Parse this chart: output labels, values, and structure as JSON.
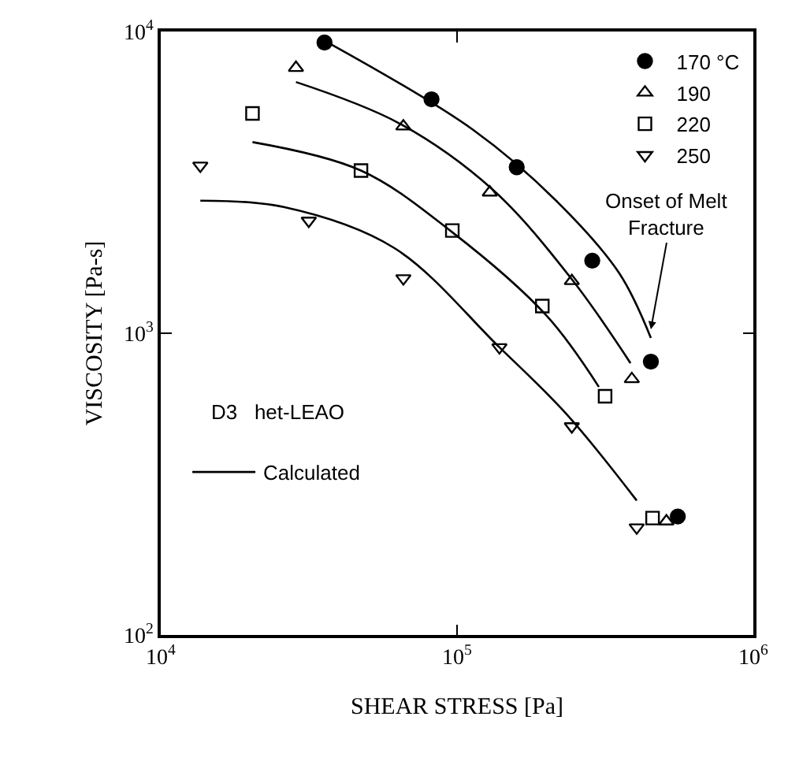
{
  "chart_data": {
    "type": "scatter",
    "xlabel": "SHEAR STRESS [Pa]",
    "ylabel": "VISCOSITY [Pa-s]",
    "log": "xy",
    "legend": "top right",
    "xlim": [
      10000,
      1000000
    ],
    "ylim": [
      100,
      10000
    ],
    "xticks": [
      {
        "value": 10000,
        "label": "10$^{4}$"
      },
      {
        "value": 100000,
        "label": "10$^{5}$"
      },
      {
        "value": 1000000,
        "label": "10$^{6}$"
      }
    ],
    "yticks": [
      {
        "value": 100,
        "label": "10$^{2}$"
      },
      {
        "value": 1000,
        "label": "10$^{3}$"
      },
      {
        "value": 10000,
        "label": "10$^{4}$"
      }
    ],
    "annotations": [
      {
        "text": "Onset of Melt Fracture",
        "x": 451000,
        "y": 1030
      },
      "D3   het-LEAO"
    ],
    "series": [
      {
        "name": "170 °C",
        "color": "#000000",
        "marker": "circle",
        "x": [
          35700,
          82000,
          159000,
          286000,
          451000,
          556000
        ],
        "values": [
          9190,
          5960,
          3550,
          1740,
          805,
          247
        ]
      },
      {
        "name": "190",
        "color": "#000000",
        "marker": "triangle",
        "x": [
          28600,
          65900,
          129000,
          244000,
          389000,
          509000
        ],
        "values": [
          7580,
          4850,
          2930,
          1490,
          705,
          238
        ]
      },
      {
        "name": "220",
        "color": "#000000",
        "marker": "square",
        "x": [
          20400,
          47400,
          96400,
          194000,
          316000,
          457000
        ],
        "values": [
          5350,
          3460,
          2190,
          1230,
          618,
          244
        ]
      },
      {
        "name": "250",
        "color": "#000000",
        "marker": "triangle-down",
        "x": [
          13600,
          31600,
          65900,
          139000,
          244000,
          404000
        ],
        "values": [
          3590,
          2360,
          1520,
          898,
          491,
          227
        ]
      },
      {
        "name": "Calculated",
        "type": "line",
        "color": "#000000",
        "marker": "none",
        "line_style": "solid",
        "x": [
          37500,
          113000,
          216000,
          353000,
          451000
        ],
        "values": [
          9080,
          4730,
          2750,
          1580,
          965
        ]
      },
      {
        "type": "line",
        "color": "#000000",
        "marker": "none",
        "line_style": "solid",
        "x": [
          28600,
          63600,
          132000,
          244000,
          385000
        ],
        "values": [
          6800,
          4970,
          2990,
          1510,
          796
        ]
      },
      {
        "type": "line",
        "color": "#000000",
        "marker": "none",
        "line_style": "solid",
        "x": [
          20400,
          47400,
          96400,
          201000,
          301000
        ],
        "values": [
          4300,
          3460,
          2160,
          1140,
          664
        ]
      },
      {
        "type": "line",
        "color": "#000000",
        "marker": "none",
        "line_style": "solid",
        "x": [
          13600,
          26000,
          61200,
          139000,
          236000,
          404000
        ],
        "values": [
          2750,
          2620,
          1920,
          898,
          535,
          279
        ]
      }
    ]
  }
}
